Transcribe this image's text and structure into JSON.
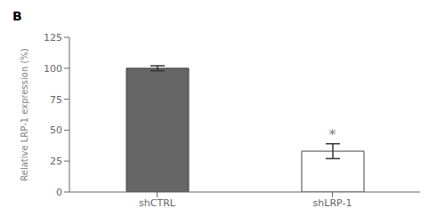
{
  "chart_data": {
    "type": "bar",
    "title": "B",
    "categories": [
      "shCTRL",
      "shLRP-1"
    ],
    "values": [
      100,
      33
    ],
    "errors": [
      2,
      6
    ],
    "colors": [
      "#666666",
      "#ffffff"
    ],
    "ylabel": "Relative LRP-1 expression (%)",
    "ylim": [
      0,
      125
    ],
    "yticks": [
      0,
      25,
      50,
      75,
      100,
      125
    ],
    "grid": false,
    "annotations": [
      {
        "text": "*",
        "category": "shLRP-1"
      }
    ]
  }
}
